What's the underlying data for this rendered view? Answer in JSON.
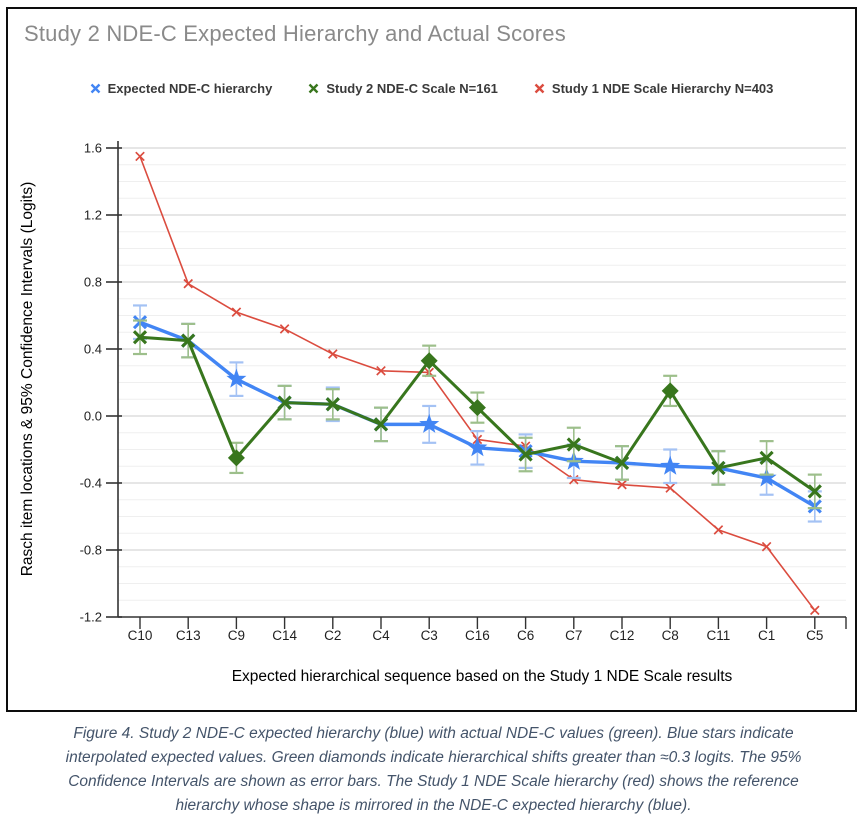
{
  "window": {
    "background": "#ffffff",
    "border_color": "#0d0d0d"
  },
  "title": {
    "text": "Study 2 NDE-C Expected Hierarchy and Actual Scores",
    "color": "#8a8a8a"
  },
  "legend": {
    "position": "top",
    "items": [
      {
        "label": "Expected NDE-C hierarchy",
        "color": "#4285F4",
        "marker": "x-icon"
      },
      {
        "label": "Study 2 NDE-C Scale N=161",
        "color": "#38761D",
        "marker": "x-icon"
      },
      {
        "label": "Study 1 NDE Scale Hierarchy N=403",
        "color": "#DB4C3F",
        "marker": "x-icon"
      }
    ]
  },
  "chart_data": {
    "type": "line",
    "title": "Study 2 NDE-C Expected Hierarchy and Actual Scores",
    "categories": [
      "C10",
      "C13",
      "C9",
      "C14",
      "C2",
      "C4",
      "C3",
      "C16",
      "C6",
      "C7",
      "C12",
      "C8",
      "C11",
      "C1",
      "C5"
    ],
    "series": [
      {
        "name": "Expected NDE-C hierarchy",
        "color": "#4285F4",
        "error_color": "#A4C2F4",
        "values": [
          0.56,
          0.45,
          0.22,
          0.08,
          0.07,
          -0.05,
          -0.05,
          -0.19,
          -0.21,
          -0.27,
          -0.28,
          -0.3,
          -0.31,
          -0.37,
          -0.54
        ],
        "markers": [
          "x",
          "x",
          "star",
          "x",
          "x",
          "x",
          "star",
          "star",
          "x",
          "star",
          "x",
          "star",
          "x",
          "star",
          "x"
        ],
        "ci": [
          0.1,
          0.1,
          0.1,
          0.1,
          0.1,
          0.1,
          0.11,
          0.1,
          0.1,
          0.1,
          0.1,
          0.1,
          0.1,
          0.1,
          0.09
        ]
      },
      {
        "name": "Study 2 NDE-C Scale N=161",
        "color": "#38761D",
        "error_color": "#9DBF8B",
        "values": [
          0.47,
          0.45,
          -0.25,
          0.08,
          0.07,
          -0.05,
          0.33,
          0.05,
          -0.23,
          -0.17,
          -0.28,
          0.15,
          -0.31,
          -0.25,
          -0.45
        ],
        "markers": [
          "x",
          "x",
          "diamond",
          "x",
          "x",
          "x",
          "diamond",
          "diamond",
          "x",
          "x",
          "x",
          "diamond",
          "x",
          "x",
          "x"
        ],
        "ci": [
          0.1,
          0.1,
          0.09,
          0.1,
          0.09,
          0.1,
          0.09,
          0.09,
          0.1,
          0.1,
          0.1,
          0.09,
          0.1,
          0.1,
          0.1
        ]
      },
      {
        "name": "Study 1 NDE Scale Hierarchy N=403",
        "color": "#DB4C3F",
        "error_color": null,
        "values": [
          1.55,
          0.79,
          0.62,
          0.52,
          0.37,
          0.27,
          0.26,
          -0.14,
          -0.18,
          -0.38,
          -0.41,
          -0.43,
          -0.68,
          -0.78,
          -1.16
        ],
        "markers": [
          "x-small",
          "x-small",
          "x-small",
          "x-small",
          "x-small",
          "x-small",
          "x-small",
          "x-small",
          "x-small",
          "x-small",
          "x-small",
          "x-small",
          "x-small",
          "x-small",
          "x-small"
        ],
        "ci": null
      }
    ],
    "xlabel": "Expected hierarchical sequence based on the Study 1 NDE Scale results",
    "ylabel": "Rasch item locations & 95% Confidence Intervals (Logits)",
    "ylim": [
      -1.2,
      1.6
    ],
    "y_major_step": 0.4,
    "y_minor_step": 0.1,
    "y_tick_labels": [
      "1.6",
      "1.2",
      "0.8",
      "0.4",
      "0.0",
      "-0.4",
      "-0.8",
      "-1.2"
    ],
    "grid": true,
    "legend_position": "top"
  },
  "caption": {
    "color": "#44546A",
    "lines": [
      "Figure 4. Study 2 NDE-C expected hierarchy (blue) with actual NDE-C values (green). Blue stars indicate",
      "interpolated expected  values. Green diamonds indicate hierarchical shifts greater than ≈0.3 logits. The 95%",
      "Confidence Intervals are shown as error bars. The Study 1 NDE Scale hierarchy (red) shows the reference",
      "hierarchy whose shape is mirrored in the NDE-C expected  hierarchy (blue)."
    ]
  }
}
